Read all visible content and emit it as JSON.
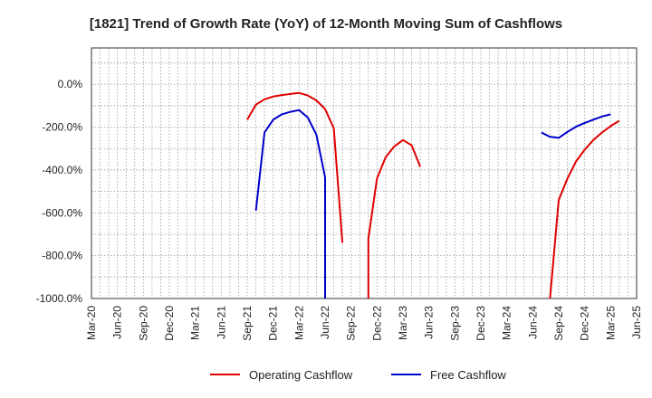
{
  "chart_data": {
    "type": "line",
    "title": "[1821]  Trend of Growth Rate (YoY) of 12-Month Moving Sum of Cashflows",
    "xlabel": "",
    "ylabel": "",
    "ylim": [
      -1000,
      170
    ],
    "y_ticks": [
      0,
      -200,
      -400,
      -600,
      -800,
      -1000
    ],
    "y_tick_labels": [
      "0.0%",
      "-200.0%",
      "-400.0%",
      "-600.0%",
      "-800.0%",
      "-1000.0%"
    ],
    "x_range": [
      "2020-03",
      "2025-06"
    ],
    "x_tick_labels": [
      "Mar-20",
      "Jun-20",
      "Sep-20",
      "Dec-20",
      "Mar-21",
      "Jun-21",
      "Sep-21",
      "Dec-21",
      "Mar-22",
      "Jun-22",
      "Sep-22",
      "Dec-22",
      "Mar-23",
      "Jun-23",
      "Sep-23",
      "Dec-23",
      "Mar-24",
      "Jun-24",
      "Sep-24",
      "Dec-24",
      "Mar-25",
      "Jun-25"
    ],
    "grid": true,
    "legend_position": "bottom-center",
    "series": [
      {
        "name": "Operating Cashflow",
        "color": "#e00000",
        "points": [
          [
            "2021-09",
            -165
          ],
          [
            "2021-10",
            -95
          ],
          [
            "2021-11",
            -70
          ],
          [
            "2021-12",
            -57
          ],
          [
            "2022-01",
            -50
          ],
          [
            "2022-02",
            -45
          ],
          [
            "2022-03",
            -40
          ],
          [
            "2022-04",
            -52
          ],
          [
            "2022-05",
            -75
          ],
          [
            "2022-06",
            -115
          ],
          [
            "2022-07",
            -205
          ],
          [
            "2022-08",
            -740
          ],
          null,
          [
            "2022-11",
            -1010
          ],
          [
            "2022-11",
            -1000
          ],
          [
            "2022-11",
            -720
          ],
          [
            "2022-12",
            -440
          ],
          [
            "2023-01",
            -340
          ],
          [
            "2023-02",
            -290
          ],
          [
            "2023-03",
            -260
          ],
          [
            "2023-04",
            -285
          ],
          [
            "2023-05",
            -385
          ],
          null,
          [
            "2024-08",
            -1010
          ],
          [
            "2024-08",
            -1000
          ],
          [
            "2024-09",
            -540
          ],
          [
            "2024-10",
            -440
          ],
          [
            "2024-11",
            -360
          ],
          [
            "2024-12",
            -305
          ],
          [
            "2025-01",
            -260
          ],
          [
            "2025-02",
            -225
          ],
          [
            "2025-03",
            -195
          ],
          [
            "2025-04",
            -170
          ]
        ]
      },
      {
        "name": "Free Cashflow",
        "color": "#0000cc",
        "points": [
          [
            "2021-10",
            -590
          ],
          [
            "2021-11",
            -225
          ],
          [
            "2021-12",
            -165
          ],
          [
            "2022-01",
            -140
          ],
          [
            "2022-02",
            -128
          ],
          [
            "2022-03",
            -120
          ],
          [
            "2022-04",
            -155
          ],
          [
            "2022-05",
            -235
          ],
          [
            "2022-06",
            -435
          ],
          [
            "2022-06",
            -1000
          ],
          [
            "2022-06",
            -1010
          ],
          null,
          [
            "2024-07",
            -225
          ],
          [
            "2024-08",
            -245
          ],
          [
            "2024-09",
            -250
          ],
          [
            "2024-10",
            -222
          ],
          [
            "2024-11",
            -198
          ],
          [
            "2024-12",
            -180
          ],
          [
            "2025-01",
            -165
          ],
          [
            "2025-02",
            -150
          ],
          [
            "2025-03",
            -140
          ]
        ]
      }
    ]
  }
}
